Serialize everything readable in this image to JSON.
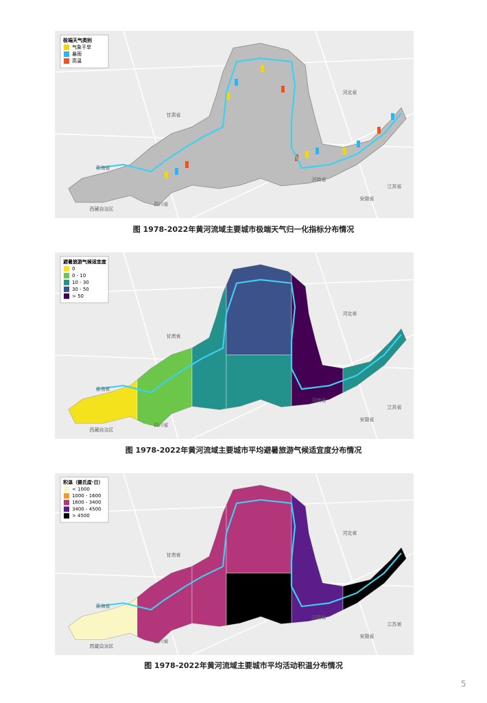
{
  "maps": [
    {
      "legend": {
        "title": "极端天气类别",
        "items": [
          {
            "label": "气象干旱",
            "color": "#f5d800"
          },
          {
            "label": "暴雨",
            "color": "#29b6f6"
          },
          {
            "label": "高温",
            "color": "#f4511e"
          }
        ]
      },
      "places": [
        "青海省",
        "甘肃省",
        "河北省",
        "河南省",
        "江苏省",
        "安徽省",
        "西藏自治区",
        "四川省"
      ],
      "caption": "图 1978-2022年黄河流域主要城市极端天气归一化指标分布情况"
    },
    {
      "legend": {
        "title": "避暑旅游气候适宜度",
        "items": [
          {
            "label": "0",
            "color": "#f4e21c"
          },
          {
            "label": "0 - 10",
            "color": "#6cc64a"
          },
          {
            "label": "10 - 30",
            "color": "#23918c"
          },
          {
            "label": "30 - 50",
            "color": "#3b528b"
          },
          {
            "label": "> 50",
            "color": "#440154"
          }
        ]
      },
      "places": [
        "青海省",
        "甘肃省",
        "河北省",
        "河南省",
        "江苏省",
        "安徽省",
        "西藏自治区",
        "四川省"
      ],
      "caption": "图 1978-2022年黄河流域主要城市平均避暑旅游气候适宜度分布情况"
    },
    {
      "legend": {
        "title": "积温（摄氏度·日）",
        "items": [
          {
            "label": "< 1000",
            "color": "#fbf7c4"
          },
          {
            "label": "1000 - 1600",
            "color": "#f29b1c"
          },
          {
            "label": "1600 - 3400",
            "color": "#b3357a"
          },
          {
            "label": "3400 - 4500",
            "color": "#5a1d8a"
          },
          {
            "label": "> 4500",
            "color": "#000000"
          }
        ]
      },
      "places": [
        "青海省",
        "甘肃省",
        "河北省",
        "河南省",
        "江苏省",
        "安徽省",
        "西藏自治区",
        "四川省"
      ],
      "caption": "图 1978-2022年黄河流域主要城市平均活动积温分布情况"
    }
  ],
  "page_number": "5"
}
